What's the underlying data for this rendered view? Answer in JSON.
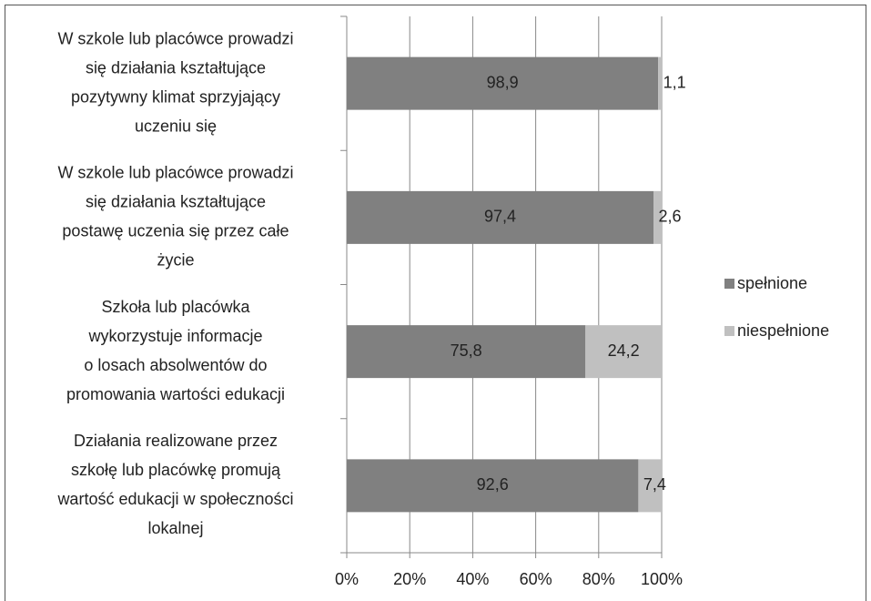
{
  "chart_data": {
    "type": "stacked-bar-horizontal",
    "categories": [
      [
        "W szkole lub placówce prowadzi",
        "się działania  kształtujące",
        "pozytywny klimat  sprzyjający",
        "uczeniu się"
      ],
      [
        "W szkole lub placówce prowadzi",
        "się działania  kształtujące",
        "postawę uczenia się przez całe",
        "życie"
      ],
      [
        "Szkoła lub placówka",
        "wykorzystuje informacje",
        "o losach absolwentów  do",
        "promowania wartości edukacji"
      ],
      [
        "Działania realizowane przez",
        "szkołę lub placówkę promują",
        "wartość edukacji w społeczności",
        "lokalnej"
      ]
    ],
    "series": [
      {
        "name": "spełnione",
        "color": "#808080",
        "values": [
          98.9,
          97.4,
          75.8,
          92.6
        ],
        "value_labels": [
          "98,9",
          "97,4",
          "75,8",
          "92,6"
        ]
      },
      {
        "name": "niespełnione",
        "color": "#c0c0c0",
        "values": [
          1.1,
          2.6,
          24.2,
          7.4
        ],
        "value_labels": [
          "1,1",
          "2,6",
          "24,2",
          "7,4"
        ]
      }
    ],
    "xlim": [
      0,
      100
    ],
    "xticks": [
      {
        "value": 0,
        "label": "0%"
      },
      {
        "value": 20,
        "label": "20%"
      },
      {
        "value": 40,
        "label": "40%"
      },
      {
        "value": 60,
        "label": "60%"
      },
      {
        "value": 80,
        "label": "80%"
      },
      {
        "value": 100,
        "label": "100%"
      }
    ],
    "grid": true,
    "legend": "right"
  }
}
